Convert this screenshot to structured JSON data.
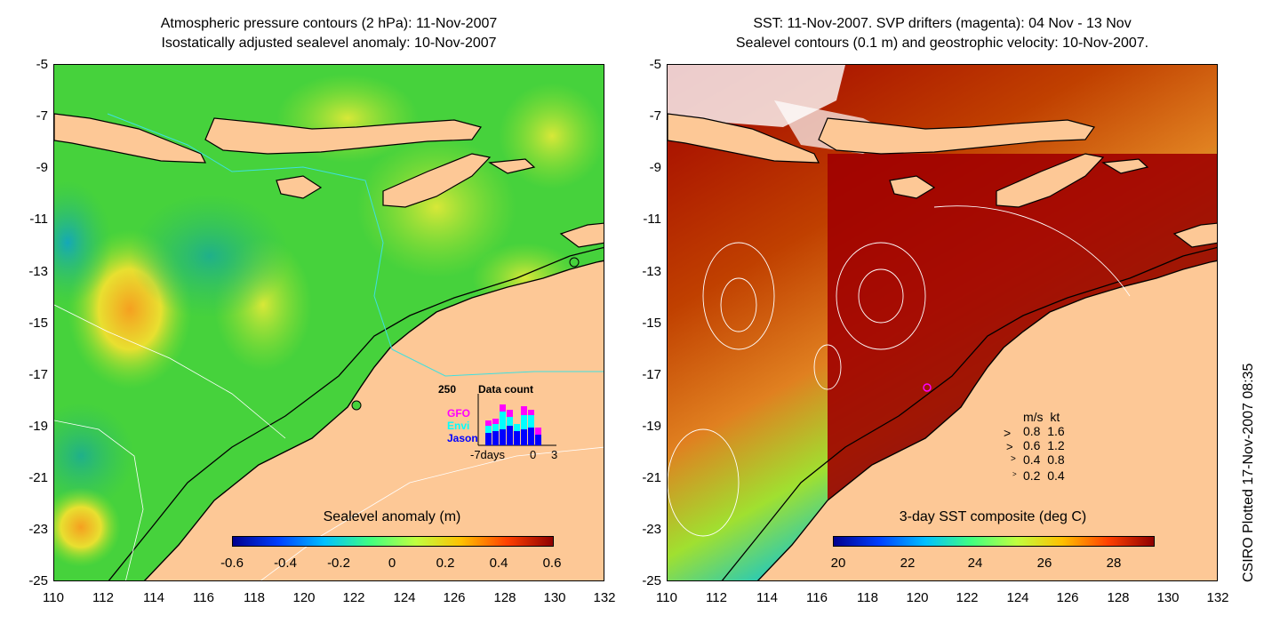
{
  "left_panel": {
    "title_line1": "Atmospheric pressure contours (2 hPa): 11-Nov-2007",
    "title_line2": "Isostatically adjusted sealevel anomaly: 10-Nov-2007",
    "colorbar_label": "Sealevel anomaly (m)",
    "colorbar_ticks": [
      "-0.6",
      "-0.4",
      "-0.2",
      "0",
      "0.2",
      "0.4",
      "0.6"
    ],
    "inset": {
      "title": "Data count",
      "max_label": "250",
      "x_ticks": [
        "-7days",
        "0",
        "3"
      ],
      "legend": [
        {
          "label": "GFO",
          "color": "#ff00ff"
        },
        {
          "label": "Envi",
          "color": "#00ffff"
        },
        {
          "label": "Jason",
          "color": "#0000ff"
        }
      ]
    }
  },
  "right_panel": {
    "title_line1": "SST: 11-Nov-2007. SVP drifters (magenta): 04 Nov - 13 Nov",
    "title_line2": "Sealevel contours (0.1 m) and geostrophic velocity: 10-Nov-2007.",
    "colorbar_label": "3-day SST composite (deg C)",
    "colorbar_ticks": [
      "20",
      "22",
      "24",
      "26",
      "28"
    ],
    "velocity_legend": {
      "header": "m/s  kt",
      "rows": [
        "0.8  1.6",
        "0.6  1.2",
        "0.4  0.8",
        "0.2  0.4"
      ]
    }
  },
  "axes": {
    "y_ticks": [
      "-5",
      "-7",
      "-9",
      "-11",
      "-13",
      "-15",
      "-17",
      "-19",
      "-21",
      "-23",
      "-25"
    ],
    "x_ticks": [
      "110",
      "112",
      "114",
      "116",
      "118",
      "120",
      "122",
      "124",
      "126",
      "128",
      "130",
      "132"
    ]
  },
  "credit": "CSIRO Plotted 17-Nov-2007 08:35",
  "colors": {
    "land": "#fdc896",
    "sea_green": "#46d23c",
    "sst_warm": "#a00000"
  }
}
